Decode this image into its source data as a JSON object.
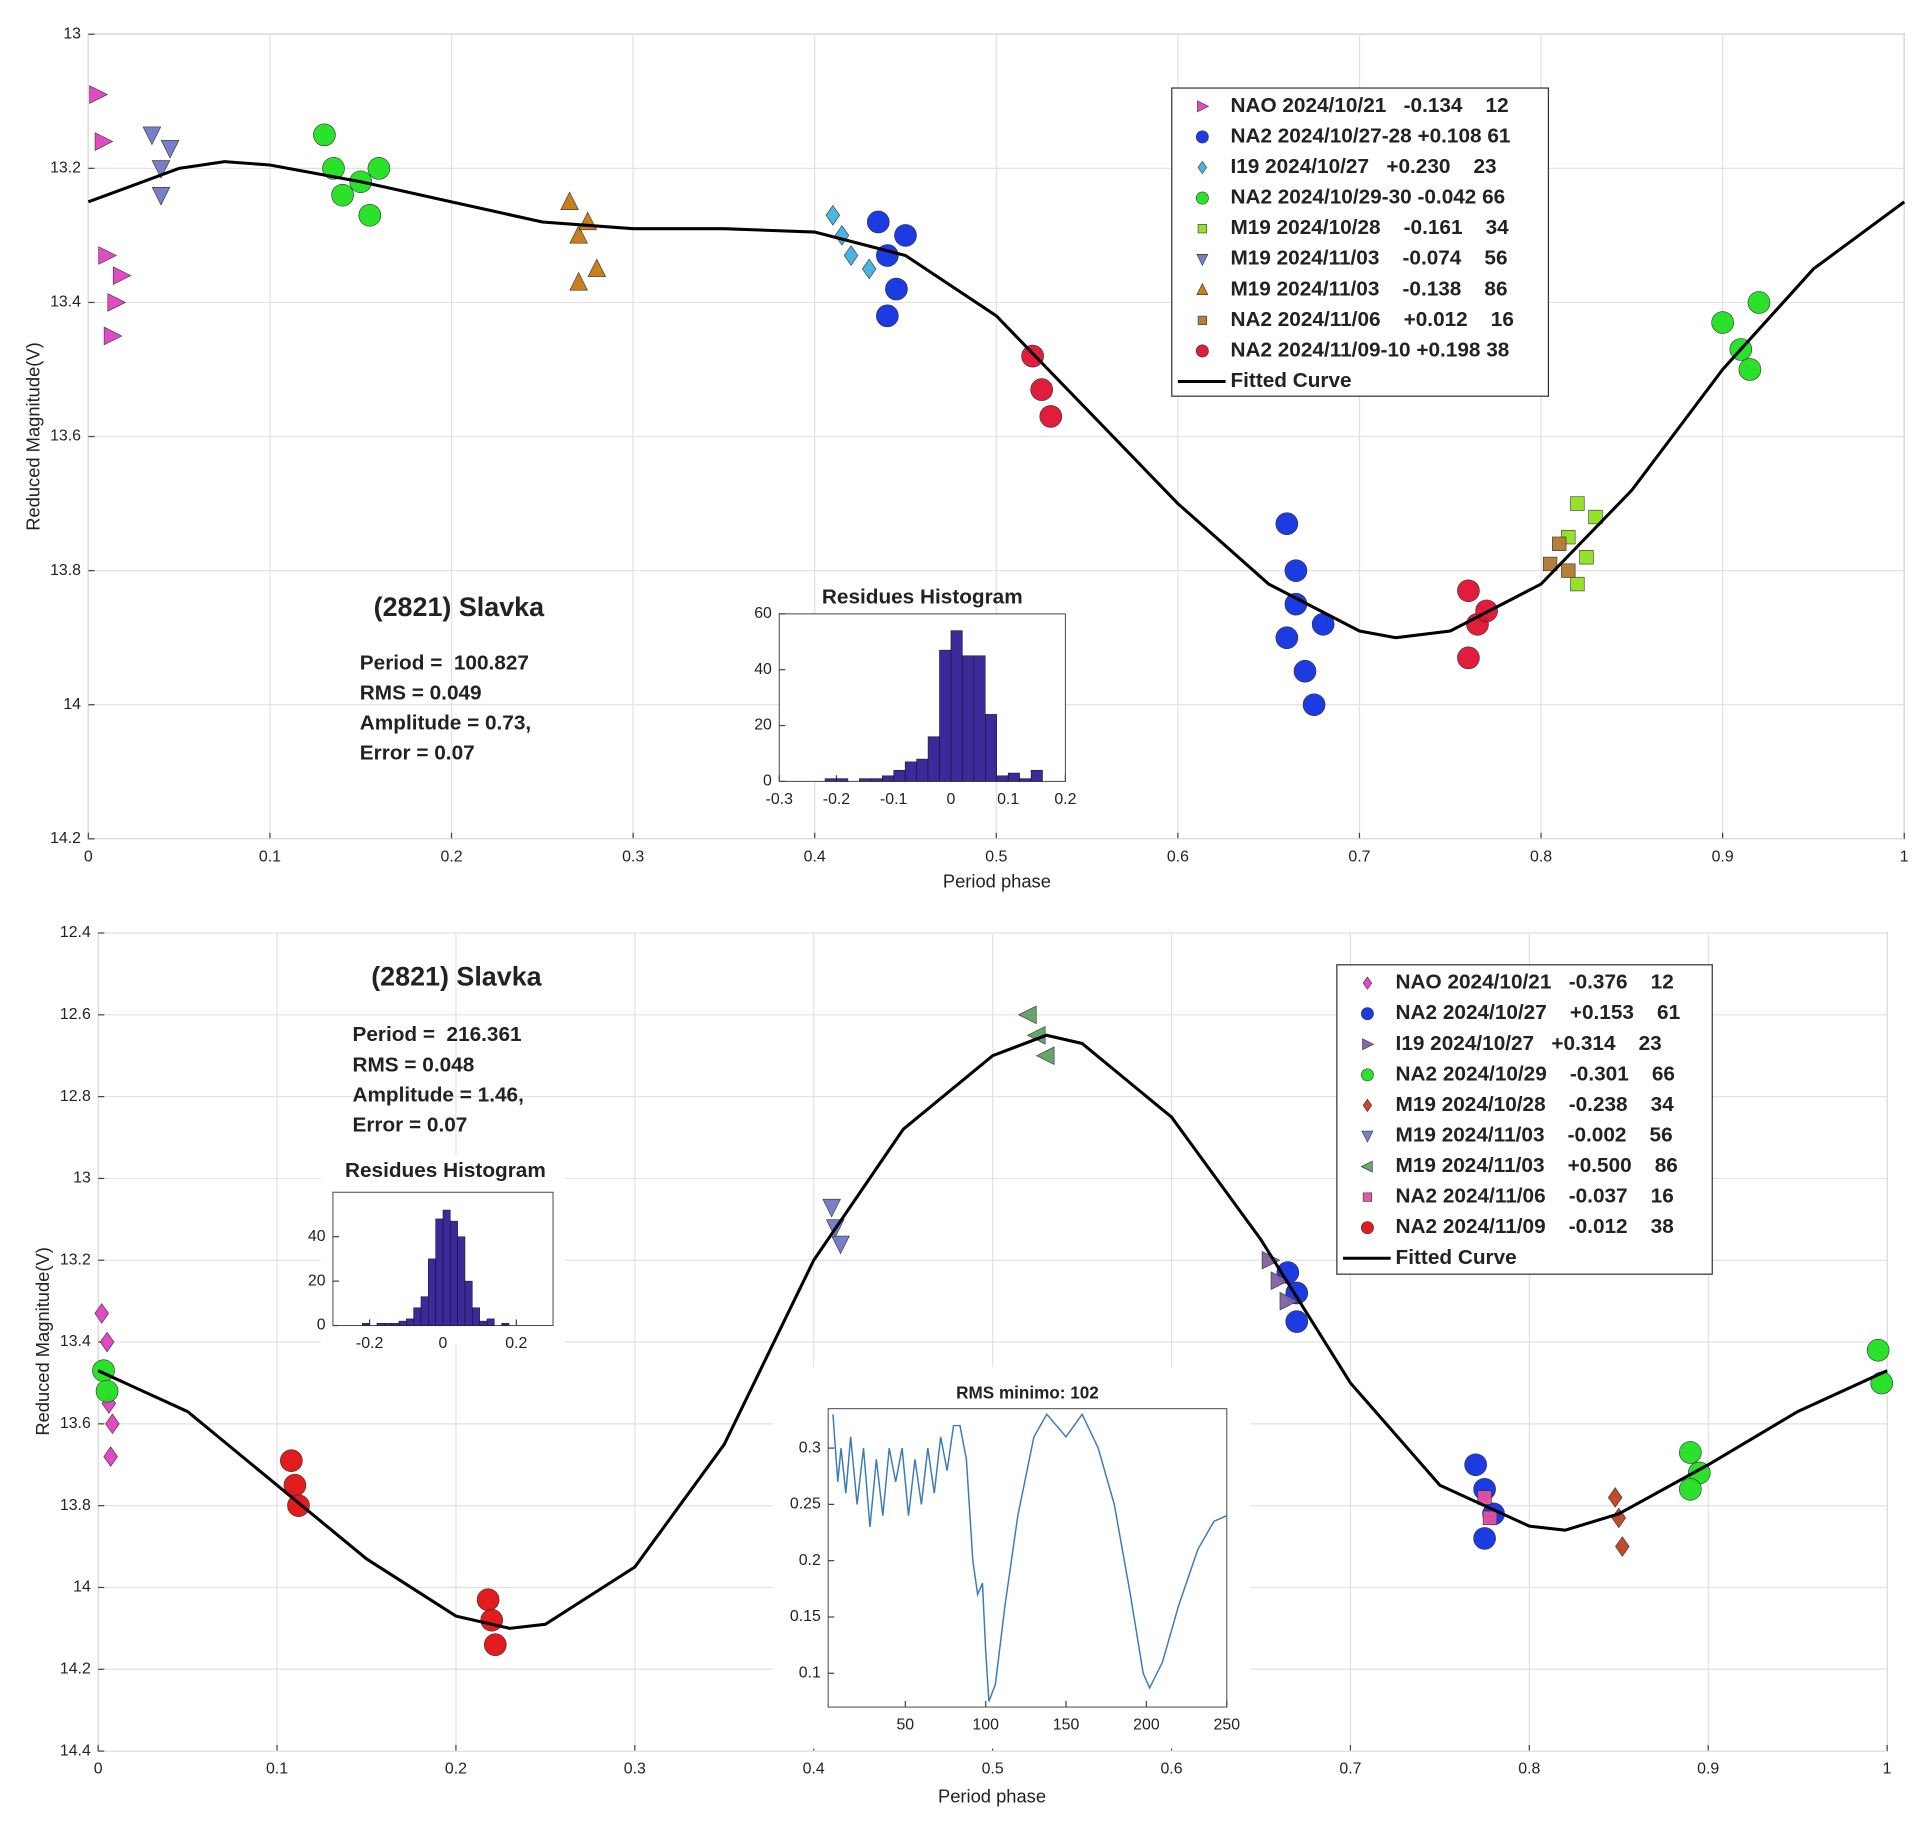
{
  "chart_data": [
    {
      "type": "scatter",
      "title": "(2821) Slavka",
      "annotations": [
        "Period =  100.827",
        "RMS = 0.049",
        "Amplitude = 0.73,",
        "Error = 0.07"
      ],
      "xlabel": "Period phase",
      "ylabel": "Reduced Magnitude(V)",
      "xlim": [
        0,
        1
      ],
      "ylim": [
        13,
        14.2
      ],
      "y_inverted": true,
      "grid": true,
      "xticks": [
        0,
        0.1,
        0.2,
        0.3,
        0.4,
        0.5,
        0.6,
        0.7,
        0.8,
        0.9,
        1
      ],
      "yticks": [
        13,
        13.2,
        13.4,
        13.6,
        13.8,
        14,
        14.2
      ],
      "series": [
        {
          "name": "NAO 2024/10/21   -0.134    12",
          "color": "#e040c0",
          "marker": "triangle-right",
          "x": [
            0.005,
            0.008,
            0.01,
            0.015,
            0.013,
            0.018
          ],
          "values": [
            13.09,
            13.16,
            13.33,
            13.4,
            13.45,
            13.36
          ]
        },
        {
          "name": "NA2 2024/10/27-28 +0.108 61",
          "color": "#1030e0",
          "marker": "circle",
          "x": [
            0.435,
            0.44,
            0.445,
            0.44,
            0.45,
            0.66,
            0.665,
            0.66,
            0.67,
            0.675,
            0.68,
            0.665
          ],
          "values": [
            13.28,
            13.33,
            13.38,
            13.42,
            13.3,
            13.73,
            13.8,
            13.9,
            13.95,
            14.0,
            13.88,
            13.85
          ]
        },
        {
          "name": "I19 2024/10/27   +0.230    23",
          "color": "#40b0e0",
          "marker": "diamond",
          "x": [
            0.41,
            0.415,
            0.42,
            0.43
          ],
          "values": [
            13.27,
            13.3,
            13.33,
            13.35
          ]
        },
        {
          "name": "NA2 2024/10/29-30 -0.042 66",
          "color": "#20e020",
          "marker": "circle",
          "x": [
            0.13,
            0.135,
            0.14,
            0.15,
            0.16,
            0.155,
            0.9,
            0.91,
            0.92,
            0.915
          ],
          "values": [
            13.15,
            13.2,
            13.24,
            13.22,
            13.2,
            13.27,
            13.43,
            13.47,
            13.4,
            13.5
          ]
        },
        {
          "name": "M19 2024/10/28    -0.161    34",
          "color": "#90e020",
          "marker": "square",
          "x": [
            0.815,
            0.82,
            0.825,
            0.83,
            0.82
          ],
          "values": [
            13.75,
            13.7,
            13.78,
            13.72,
            13.82
          ]
        },
        {
          "name": "M19 2024/11/03    -0.074    56",
          "color": "#7078c8",
          "marker": "triangle-down",
          "x": [
            0.035,
            0.04,
            0.045,
            0.04
          ],
          "values": [
            13.15,
            13.2,
            13.17,
            13.24
          ]
        },
        {
          "name": "M19 2024/11/03    -0.138    86",
          "color": "#c87810",
          "marker": "triangle-up",
          "x": [
            0.265,
            0.27,
            0.275,
            0.28,
            0.27
          ],
          "values": [
            13.25,
            13.3,
            13.28,
            13.35,
            13.37
          ]
        },
        {
          "name": "NA2 2024/11/06    +0.012    16",
          "color": "#b07830",
          "marker": "square",
          "x": [
            0.81,
            0.815,
            0.805
          ],
          "values": [
            13.76,
            13.8,
            13.79
          ]
        },
        {
          "name": "NA2 2024/11/09-10 +0.198 38",
          "color": "#e01030",
          "marker": "circle",
          "x": [
            0.52,
            0.525,
            0.53,
            0.76,
            0.765,
            0.76,
            0.77
          ],
          "values": [
            13.48,
            13.53,
            13.57,
            13.83,
            13.88,
            13.93,
            13.86
          ]
        },
        {
          "name": "Fitted Curve",
          "color": "#000000",
          "marker": "line",
          "x": [
            0,
            0.05,
            0.075,
            0.1,
            0.15,
            0.2,
            0.25,
            0.3,
            0.35,
            0.4,
            0.45,
            0.5,
            0.55,
            0.6,
            0.65,
            0.7,
            0.72,
            0.75,
            0.8,
            0.85,
            0.9,
            0.95,
            1
          ],
          "values": [
            13.25,
            13.2,
            13.19,
            13.195,
            13.22,
            13.25,
            13.28,
            13.29,
            13.29,
            13.295,
            13.33,
            13.42,
            13.56,
            13.7,
            13.82,
            13.89,
            13.9,
            13.89,
            13.82,
            13.68,
            13.5,
            13.35,
            13.25
          ]
        }
      ]
    },
    {
      "type": "histogram",
      "title": "Residues Histogram",
      "color": "#3a2a9a",
      "xlim": [
        -0.3,
        0.2
      ],
      "xticks": [
        -0.3,
        -0.2,
        -0.1,
        0,
        0.1,
        0.2
      ],
      "ylim": [
        0,
        60
      ],
      "yticks": [
        0,
        20,
        40,
        60
      ],
      "bins": [
        -0.22,
        -0.2,
        -0.18,
        -0.16,
        -0.14,
        -0.12,
        -0.1,
        -0.08,
        -0.06,
        -0.04,
        -0.02,
        0,
        0.02,
        0.04,
        0.06,
        0.08,
        0.1,
        0.12,
        0.14,
        0.16,
        0.18
      ],
      "counts": [
        1,
        1,
        0,
        1,
        1,
        2,
        4,
        7,
        8,
        16,
        47,
        54,
        45,
        45,
        24,
        2,
        3,
        1,
        4,
        0
      ]
    },
    {
      "type": "scatter",
      "title": "(2821) Slavka",
      "annotations": [
        "Period =  216.361",
        "RMS = 0.048",
        "Amplitude = 1.46,",
        "Error = 0.07"
      ],
      "xlabel": "Period phase",
      "ylabel": "Reduced Magnitude(V)",
      "xlim": [
        0,
        1
      ],
      "ylim": [
        12.4,
        14.4
      ],
      "y_inverted": true,
      "grid": true,
      "xticks": [
        0,
        0.1,
        0.2,
        0.3,
        0.4,
        0.5,
        0.6,
        0.7,
        0.8,
        0.9,
        1
      ],
      "yticks": [
        12.4,
        12.6,
        12.8,
        13,
        13.2,
        13.4,
        13.6,
        13.8,
        14,
        14.2,
        14.4
      ],
      "series": [
        {
          "name": "NAO 2024/10/21   -0.376    12",
          "color": "#e040c0",
          "marker": "diamond",
          "x": [
            0.002,
            0.005,
            0.006,
            0.008,
            0.007
          ],
          "values": [
            13.33,
            13.4,
            13.55,
            13.6,
            13.68
          ]
        },
        {
          "name": "NA2 2024/10/27    +0.153    61",
          "color": "#1030e0",
          "marker": "circle",
          "x": [
            0.665,
            0.67,
            0.67,
            0.77,
            0.775,
            0.78,
            0.775
          ],
          "values": [
            13.23,
            13.28,
            13.35,
            13.7,
            13.76,
            13.82,
            13.88
          ]
        },
        {
          "name": "I19 2024/10/27   +0.314    23",
          "color": "#8060a0",
          "marker": "triangle-right",
          "x": [
            0.655,
            0.66,
            0.665
          ],
          "values": [
            13.2,
            13.25,
            13.3
          ]
        },
        {
          "name": "NA2 2024/10/29    -0.301    66",
          "color": "#20e020",
          "marker": "circle",
          "x": [
            0.003,
            0.005,
            0.89,
            0.895,
            0.89,
            0.995,
            0.997
          ],
          "values": [
            13.47,
            13.52,
            13.67,
            13.72,
            13.76,
            13.42,
            13.5
          ]
        },
        {
          "name": "M19 2024/10/28    -0.238    34",
          "color": "#c04020",
          "marker": "diamond",
          "x": [
            0.848,
            0.85,
            0.852
          ],
          "values": [
            13.78,
            13.83,
            13.9
          ]
        },
        {
          "name": "M19 2024/11/03    -0.002    56",
          "color": "#7078c8",
          "marker": "triangle-down",
          "x": [
            0.41,
            0.412,
            0.415
          ],
          "values": [
            13.07,
            13.12,
            13.16
          ]
        },
        {
          "name": "M19 2024/11/03    +0.500    86",
          "color": "#60a060",
          "marker": "triangle-left",
          "x": [
            0.52,
            0.525,
            0.53
          ],
          "values": [
            12.6,
            12.65,
            12.7
          ]
        },
        {
          "name": "NA2 2024/11/06    -0.037    16",
          "color": "#e050a0",
          "marker": "square",
          "x": [
            0.775,
            0.778
          ],
          "values": [
            13.78,
            13.83
          ]
        },
        {
          "name": "NA2 2024/11/09    -0.012    38",
          "color": "#e01010",
          "marker": "circle",
          "x": [
            0.108,
            0.11,
            0.112,
            0.218,
            0.22,
            0.222
          ],
          "values": [
            13.69,
            13.75,
            13.8,
            14.03,
            14.08,
            14.14
          ]
        },
        {
          "name": "Fitted Curve",
          "color": "#000000",
          "marker": "line",
          "x": [
            0,
            0.05,
            0.1,
            0.15,
            0.2,
            0.23,
            0.25,
            0.3,
            0.35,
            0.4,
            0.45,
            0.5,
            0.53,
            0.55,
            0.6,
            0.65,
            0.7,
            0.75,
            0.8,
            0.82,
            0.85,
            0.9,
            0.95,
            1
          ],
          "values": [
            13.47,
            13.57,
            13.75,
            13.93,
            14.07,
            14.1,
            14.09,
            13.95,
            13.65,
            13.2,
            12.88,
            12.7,
            12.65,
            12.67,
            12.85,
            13.15,
            13.5,
            13.75,
            13.85,
            13.86,
            13.82,
            13.7,
            13.57,
            13.47
          ]
        }
      ]
    },
    {
      "type": "histogram",
      "title": "Residues Histogram",
      "color": "#3a2a9a",
      "xlim": [
        -0.3,
        0.3
      ],
      "xticks": [
        -0.2,
        0,
        0.2
      ],
      "ylim": [
        0,
        60
      ],
      "yticks": [
        0,
        20,
        40
      ],
      "bins": [
        -0.22,
        -0.2,
        -0.18,
        -0.16,
        -0.14,
        -0.12,
        -0.1,
        -0.08,
        -0.06,
        -0.04,
        -0.02,
        0,
        0.02,
        0.04,
        0.06,
        0.08,
        0.1,
        0.12,
        0.14,
        0.16,
        0.18
      ],
      "counts": [
        1,
        0,
        1,
        1,
        1,
        2,
        3,
        8,
        13,
        30,
        48,
        52,
        47,
        40,
        20,
        8,
        2,
        3,
        0,
        1
      ]
    },
    {
      "type": "line",
      "title": "RMS minimo: 102",
      "color": "#3a7ab8",
      "xlim": [
        2,
        250
      ],
      "xticks": [
        50,
        100,
        150,
        200,
        250
      ],
      "ylim": [
        0.07,
        0.335
      ],
      "yticks": [
        0.1,
        0.15,
        0.2,
        0.25,
        0.3
      ],
      "x": [
        5,
        8,
        10,
        13,
        16,
        20,
        24,
        28,
        32,
        36,
        40,
        44,
        48,
        52,
        56,
        60,
        64,
        68,
        72,
        76,
        80,
        84,
        88,
        92,
        95,
        98,
        100,
        102,
        106,
        112,
        120,
        130,
        138,
        150,
        160,
        170,
        180,
        190,
        198,
        202,
        210,
        220,
        232,
        242,
        250
      ],
      "values": [
        0.33,
        0.27,
        0.3,
        0.26,
        0.31,
        0.25,
        0.3,
        0.23,
        0.29,
        0.24,
        0.3,
        0.27,
        0.3,
        0.24,
        0.29,
        0.25,
        0.3,
        0.26,
        0.31,
        0.28,
        0.32,
        0.32,
        0.29,
        0.2,
        0.17,
        0.18,
        0.12,
        0.075,
        0.09,
        0.16,
        0.24,
        0.31,
        0.33,
        0.31,
        0.33,
        0.3,
        0.25,
        0.17,
        0.1,
        0.087,
        0.11,
        0.16,
        0.21,
        0.235,
        0.24
      ]
    }
  ]
}
